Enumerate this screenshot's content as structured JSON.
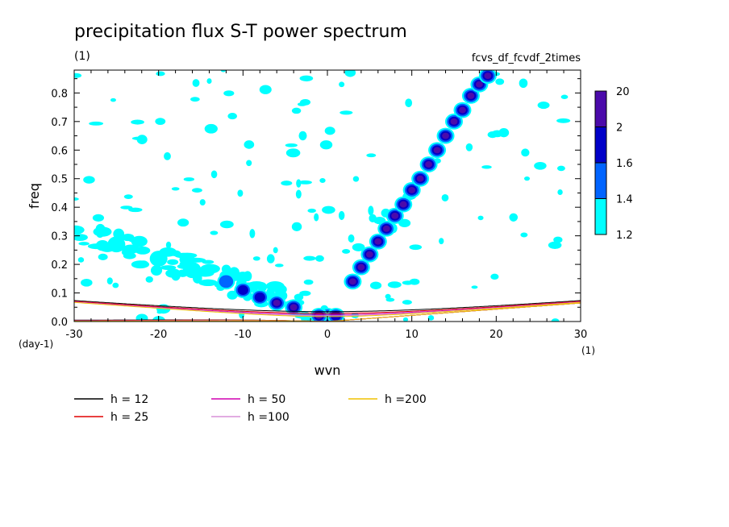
{
  "chart_data": {
    "type": "heatmap",
    "title": "precipitation flux S-T power spectrum",
    "subtitle": "fcvs_df_fcvdf_2times",
    "units_label": "(1)",
    "xlabel": "wvn",
    "ylabel": "freq",
    "x_units": "(1)",
    "y_units": "(day-1)",
    "xlim": [
      -30,
      30
    ],
    "ylim": [
      0,
      0.88
    ],
    "x_ticks": [
      "-30",
      "-20",
      "-10",
      "0",
      "10",
      "20",
      "30"
    ],
    "x_tick_values": [
      -30,
      -20,
      -10,
      0,
      10,
      20,
      30
    ],
    "y_ticks": [
      "0.0",
      "0.1",
      "0.2",
      "0.3",
      "0.4",
      "0.5",
      "0.6",
      "0.7",
      "0.8"
    ],
    "y_tick_values": [
      0,
      0.1,
      0.2,
      0.3,
      0.4,
      0.5,
      0.6,
      0.7,
      0.8
    ],
    "colorbar": {
      "levels": [
        "1.2",
        "1.4",
        "1.6",
        "2",
        "20"
      ],
      "colors": [
        "#00ffff",
        "#0064ff",
        "#0000c8",
        "#4b0aaa"
      ]
    },
    "dispersion_curves": [
      {
        "name": "h = 12",
        "h": 12,
        "color": "#000000"
      },
      {
        "name": "h = 25",
        "h": 25,
        "color": "#e00000"
      },
      {
        "name": "h = 50",
        "h": 50,
        "color": "#d000b0"
      },
      {
        "name": "h =100",
        "h": 100,
        "color": "#d890d8"
      },
      {
        "name": "h =200",
        "h": 200,
        "color": "#f0c000"
      }
    ],
    "spectral_peaks": [
      {
        "wvn": 3,
        "freq": 0.14,
        "level": 4
      },
      {
        "wvn": 4,
        "freq": 0.19,
        "level": 4
      },
      {
        "wvn": 5,
        "freq": 0.235,
        "level": 4
      },
      {
        "wvn": 6,
        "freq": 0.28,
        "level": 4
      },
      {
        "wvn": 7,
        "freq": 0.325,
        "level": 4
      },
      {
        "wvn": 8,
        "freq": 0.37,
        "level": 4
      },
      {
        "wvn": 9,
        "freq": 0.41,
        "level": 4
      },
      {
        "wvn": 10,
        "freq": 0.46,
        "level": 4
      },
      {
        "wvn": 11,
        "freq": 0.5,
        "level": 4
      },
      {
        "wvn": 12,
        "freq": 0.55,
        "level": 4
      },
      {
        "wvn": 13,
        "freq": 0.6,
        "level": 4
      },
      {
        "wvn": 14,
        "freq": 0.65,
        "level": 4
      },
      {
        "wvn": 15,
        "freq": 0.7,
        "level": 4
      },
      {
        "wvn": 16,
        "freq": 0.74,
        "level": 4
      },
      {
        "wvn": 17,
        "freq": 0.79,
        "level": 4
      },
      {
        "wvn": 18,
        "freq": 0.83,
        "level": 4
      },
      {
        "wvn": 19,
        "freq": 0.86,
        "level": 4
      },
      {
        "wvn": -4,
        "freq": 0.05,
        "level": 4
      },
      {
        "wvn": -6,
        "freq": 0.065,
        "level": 4
      },
      {
        "wvn": -8,
        "freq": 0.085,
        "level": 3
      },
      {
        "wvn": -10,
        "freq": 0.11,
        "level": 3
      },
      {
        "wvn": -12,
        "freq": 0.14,
        "level": 2
      },
      {
        "wvn": -16,
        "freq": 0.18,
        "level": 1
      },
      {
        "wvn": -20,
        "freq": 0.22,
        "level": 1
      },
      {
        "wvn": -25,
        "freq": 0.27,
        "level": 1
      },
      {
        "wvn": 0,
        "freq": 0.02,
        "level": 4
      },
      {
        "wvn": -1,
        "freq": 0.02,
        "level": 4
      },
      {
        "wvn": 1,
        "freq": 0.02,
        "level": 3
      }
    ],
    "grid": false,
    "legend_position": "bottom"
  }
}
